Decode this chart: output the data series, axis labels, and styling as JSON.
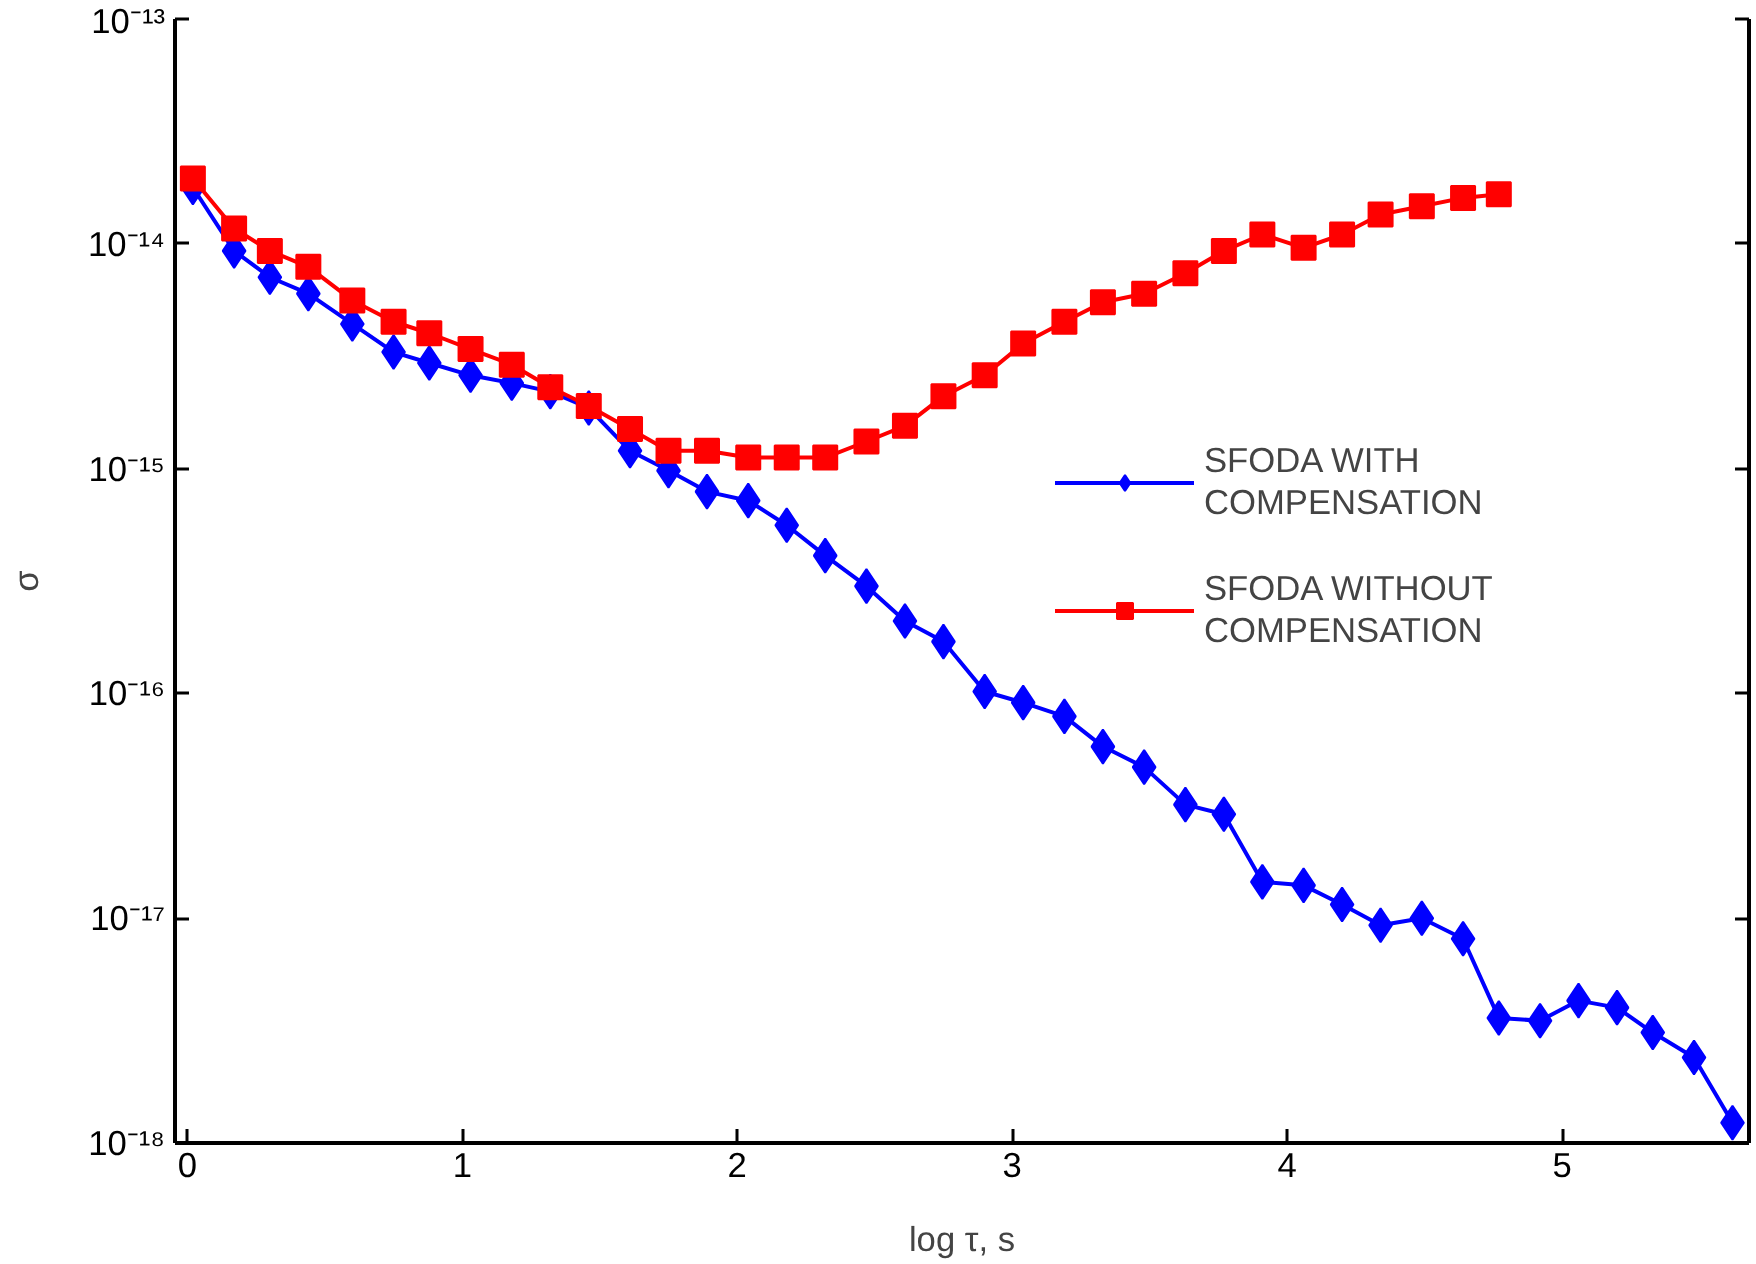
{
  "chart_data": {
    "type": "line",
    "xlabel": "log τ, s",
    "ylabel": "σ",
    "log": "y",
    "xlim": [
      -0.045,
      5.68
    ],
    "xticks": [
      0,
      1,
      2,
      3,
      4,
      5
    ],
    "ylim": [
      1e-18,
      1e-13
    ],
    "yticks": [
      {
        "value": 1e-18,
        "label": "10⁻¹⁸"
      },
      {
        "value": 1e-17,
        "label": "10⁻¹⁷"
      },
      {
        "value": 1e-16,
        "label": "10⁻¹⁶"
      },
      {
        "value": 1e-15,
        "label": "10⁻¹⁵"
      },
      {
        "value": 1e-14,
        "label": "10⁻¹⁴"
      },
      {
        "value": 1e-13,
        "label": "10⁻¹³"
      }
    ],
    "grid": false,
    "legend": "right",
    "line_style": "solid",
    "x": [
      0.02,
      0.17,
      0.3,
      0.44,
      0.6,
      0.75,
      0.88,
      1.03,
      1.18,
      1.32,
      1.46,
      1.61,
      1.75,
      1.89,
      2.04,
      2.18,
      2.32,
      2.47,
      2.61,
      2.75,
      2.9,
      3.04,
      3.19,
      3.33,
      3.48,
      3.63,
      3.77,
      3.91,
      4.06,
      4.2,
      4.34,
      4.49,
      4.64,
      4.77,
      4.92,
      5.06,
      5.2,
      5.33,
      5.48,
      5.62
    ],
    "series": [
      {
        "name": "SFODA WITH COMPENSATION",
        "color": "#0000ff",
        "marker": "diamond",
        "values": [
          1.78e-14,
          9.3e-15,
          7.1e-15,
          6e-15,
          4.4e-15,
          3.3e-15,
          2.95e-15,
          2.6e-15,
          2.4e-15,
          2.2e-15,
          1.86e-15,
          1.2e-15,
          9.8e-16,
          7.9e-16,
          7.2e-16,
          5.6e-16,
          4.1e-16,
          3e-16,
          2.1e-16,
          1.7e-16,
          1.02e-16,
          9.1e-17,
          7.9e-17,
          5.8e-17,
          4.7e-17,
          3.2e-17,
          2.9e-17,
          1.45e-17,
          1.4e-17,
          1.15e-17,
          9.3e-18,
          1e-17,
          8.1e-18,
          3.6e-18,
          3.5e-18,
          4.3e-18,
          4e-18,
          3.1e-18,
          2.4e-18,
          1.23e-18
        ]
      },
      {
        "name": "SFODA WITHOUT COMPENSATION",
        "color": "#ff0000",
        "marker": "square",
        "x": [
          0.02,
          0.17,
          0.3,
          0.44,
          0.6,
          0.75,
          0.88,
          1.03,
          1.18,
          1.32,
          1.46,
          1.61,
          1.75,
          1.89,
          2.04,
          2.18,
          2.32,
          2.47,
          2.61,
          2.75,
          2.9,
          3.04,
          3.19,
          3.33,
          3.48,
          3.63,
          3.77,
          3.91,
          4.06,
          4.2,
          4.34,
          4.49,
          4.64,
          4.77
        ],
        "values": [
          1.95e-14,
          1.17e-14,
          9.3e-15,
          7.9e-15,
          5.6e-15,
          4.5e-15,
          4e-15,
          3.4e-15,
          2.9e-15,
          2.3e-15,
          1.9e-15,
          1.5e-15,
          1.2e-15,
          1.2e-15,
          1.12e-15,
          1.12e-15,
          1.12e-15,
          1.32e-15,
          1.55e-15,
          2.1e-15,
          2.6e-15,
          3.6e-15,
          4.5e-15,
          5.5e-15,
          6e-15,
          7.4e-15,
          9.3e-15,
          1.1e-14,
          9.6e-15,
          1.1e-14,
          1.35e-14,
          1.47e-14,
          1.6e-14,
          1.66e-14
        ]
      }
    ]
  }
}
